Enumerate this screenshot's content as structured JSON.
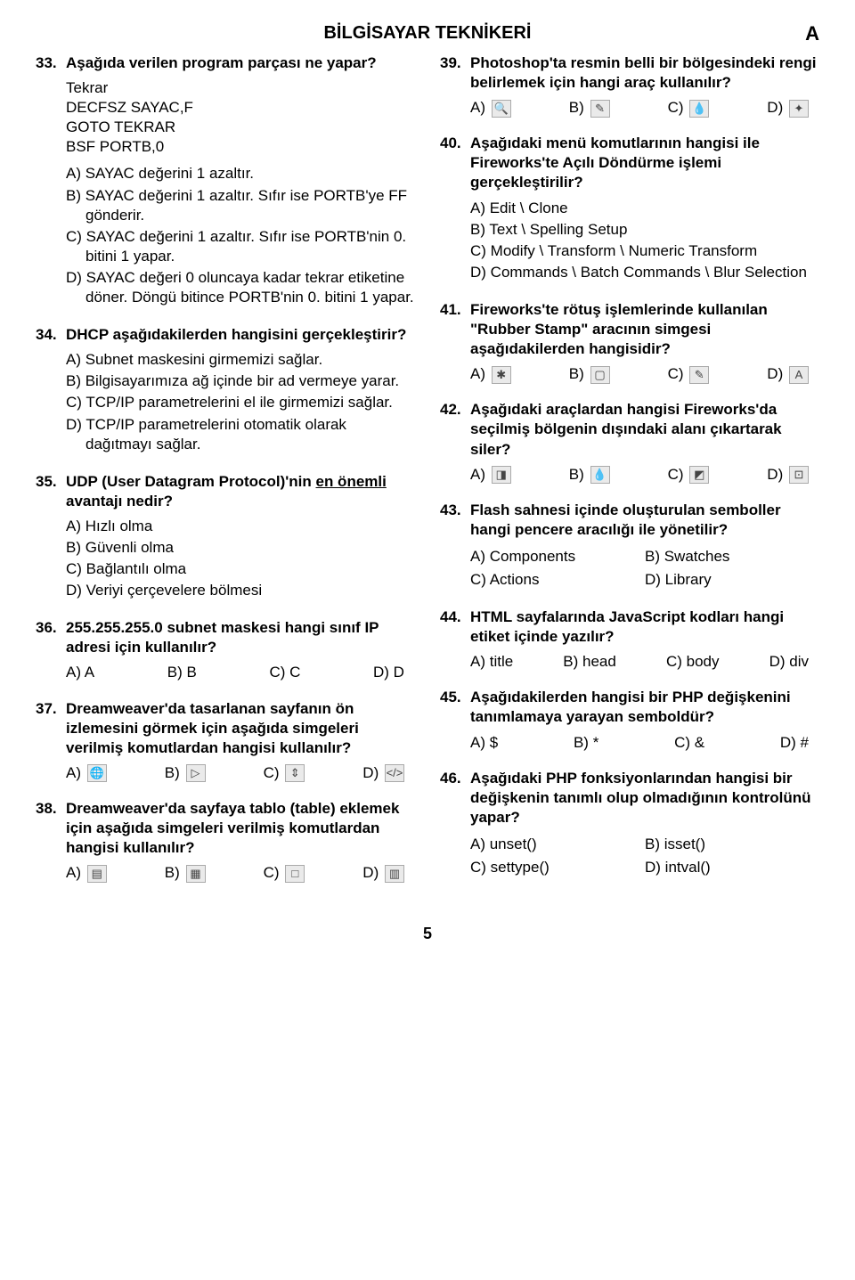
{
  "header": "BİLGİSAYAR TEKNİKERİ",
  "cornerLabel": "A",
  "pageNumber": "5",
  "left": {
    "q33": {
      "num": "33.",
      "text": "Aşağıda verilen program parçası ne yapar?",
      "code": "Tekrar\nDECFSZ  SAYAC,F\nGOTO TEKRAR\nBSF PORTB,0",
      "a": "A) SAYAC değerini 1 azaltır.",
      "b": "B) SAYAC değerini 1 azaltır. Sıfır ise PORTB'ye FF gönderir.",
      "c": "C) SAYAC değerini 1 azaltır. Sıfır ise PORTB'nin 0. bitini 1 yapar.",
      "d": "D) SAYAC değeri 0 oluncaya kadar tekrar etiketine döner. Döngü bitince PORTB'nin 0. bitini 1 yapar."
    },
    "q34": {
      "num": "34.",
      "text": "DHCP aşağıdakilerden hangisini gerçekleştirir?",
      "a": "A) Subnet maskesini girmemizi sağlar.",
      "b": "B) Bilgisayarımıza ağ içinde bir ad vermeye yarar.",
      "c": "C) TCP/IP parametrelerini  el ile girmemizi sağlar.",
      "d": "D) TCP/IP parametrelerini otomatik olarak dağıtmayı sağlar."
    },
    "q35": {
      "num": "35.",
      "text_pre": "UDP (User Datagram Protocol)'nin ",
      "text_u": "en önemli",
      "text_post": " avantajı nedir?",
      "a": "A) Hızlı olma",
      "b": "B) Güvenli olma",
      "c": "C) Bağlantılı olma",
      "d": "D) Veriyi çerçevelere bölmesi"
    },
    "q36": {
      "num": "36.",
      "text": "255.255.255.0 subnet maskesi hangi sınıf IP adresi için kullanılır?",
      "a": "A) A",
      "b": "B) B",
      "c": "C) C",
      "d": "D) D"
    },
    "q37": {
      "num": "37.",
      "text": "Dreamweaver'da tasarlanan sayfanın ön izlemesini görmek için aşağıda simgeleri verilmiş komutlardan hangisi kullanılır?",
      "a": "A)",
      "b": "B)",
      "c": "C)",
      "d": "D)",
      "iconA": "🌐",
      "iconB": "▷",
      "iconC": "⇕",
      "iconD": "</>"
    },
    "q38": {
      "num": "38.",
      "text": "Dreamweaver'da sayfaya tablo (table) eklemek için aşağıda simgeleri verilmiş komutlardan hangisi kullanılır?",
      "a": "A)",
      "b": "B)",
      "c": "C)",
      "d": "D)",
      "iconA": "▤",
      "iconB": "▦",
      "iconC": "□",
      "iconD": "▥"
    }
  },
  "right": {
    "q39": {
      "num": "39.",
      "text": "Photoshop'ta resmin belli bir bölgesindeki rengi belirlemek için hangi araç kullanılır?",
      "a": "A)",
      "b": "B)",
      "c": "C)",
      "d": "D)",
      "iconA": "🔍",
      "iconB": "✎",
      "iconC": "💧",
      "iconD": "✦"
    },
    "q40": {
      "num": "40.",
      "text": "Aşağıdaki menü komutlarının hangisi ile Fireworks'te Açılı Döndürme işlemi gerçekleştirilir?",
      "a": "A) Edit \\ Clone",
      "b": "B) Text \\ Spelling Setup",
      "c": "C) Modify \\ Transform \\ Numeric Transform",
      "d": "D) Commands \\ Batch Commands \\ Blur Selection"
    },
    "q41": {
      "num": "41.",
      "text": "Fireworks'te rötuş işlemlerinde kullanılan \"Rubber Stamp\" aracının simgesi aşağıdakilerden hangisidir?",
      "a": "A)",
      "b": "B)",
      "c": "C)",
      "d": "D)",
      "iconA": "✱",
      "iconB": "▢",
      "iconC": "✎",
      "iconD": "A"
    },
    "q42": {
      "num": "42.",
      "text": "Aşağıdaki araçlardan hangisi Fireworks'da seçilmiş bölgenin dışındaki alanı çıkartarak siler?",
      "a": "A)",
      "b": "B)",
      "c": "C)",
      "d": "D)",
      "iconA": "◨",
      "iconB": "💧",
      "iconC": "◩",
      "iconD": "⊡"
    },
    "q43": {
      "num": "43.",
      "text": "Flash sahnesi içinde oluşturulan semboller hangi pencere aracılığı ile yönetilir?",
      "a": "A) Components",
      "b": "B) Swatches",
      "c": "C) Actions",
      "d": "D) Library"
    },
    "q44": {
      "num": "44.",
      "text": "HTML sayfalarında JavaScript kodları hangi etiket içinde yazılır?",
      "a": "A) title",
      "b": "B) head",
      "c": "C) body",
      "d": "D) div"
    },
    "q45": {
      "num": "45.",
      "text": "Aşağıdakilerden hangisi bir PHP değişkenini tanımlamaya yarayan semboldür?",
      "a": "A) $",
      "b": "B) *",
      "c": "C) &",
      "d": "D) #"
    },
    "q46": {
      "num": "46.",
      "text": "Aşağıdaki PHP fonksiyonlarından hangisi bir değişkenin tanımlı olup olmadığının kontrolünü yapar?",
      "a": "A) unset()",
      "b": "B) isset()",
      "c": "C) settype()",
      "d": "D) intval()"
    }
  }
}
